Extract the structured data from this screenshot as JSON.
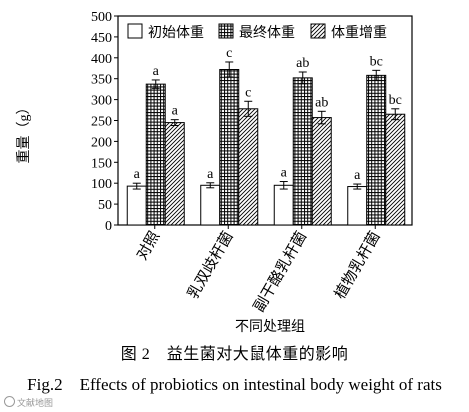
{
  "chart_data": {
    "type": "bar",
    "ylabel": "重量（g）",
    "xlabel": "不同处理组",
    "ylim": [
      0,
      500
    ],
    "yticks": [
      0,
      50,
      100,
      150,
      200,
      250,
      300,
      350,
      400,
      450,
      500
    ],
    "categories": [
      "对照",
      "乳双歧杆菌",
      "副干酪乳杆菌",
      "植物乳杆菌"
    ],
    "series": [
      {
        "name": "初始体重",
        "pattern": "plain",
        "values": [
          93,
          95,
          95,
          92
        ],
        "errors": [
          7,
          6,
          9,
          6
        ],
        "labels": [
          "a",
          "a",
          "a",
          "a"
        ]
      },
      {
        "name": "最终体重",
        "pattern": "grid",
        "values": [
          337,
          372,
          352,
          358
        ],
        "errors": [
          10,
          18,
          14,
          12
        ],
        "labels": [
          "a",
          "c",
          "ab",
          "bc"
        ]
      },
      {
        "name": "体重增重",
        "pattern": "diagonal",
        "values": [
          245,
          278,
          257,
          265
        ],
        "errors": [
          7,
          18,
          15,
          13
        ],
        "labels": [
          "a",
          "c",
          "ab",
          "bc"
        ]
      }
    ],
    "legend_position": "top-right",
    "grid": false
  },
  "caption": {
    "chinese": "图 2　益生菌对大鼠体重的影响",
    "english": "Fig.2　Effects of probiotics on intestinal body weight of rats"
  },
  "watermark": "文献地图"
}
